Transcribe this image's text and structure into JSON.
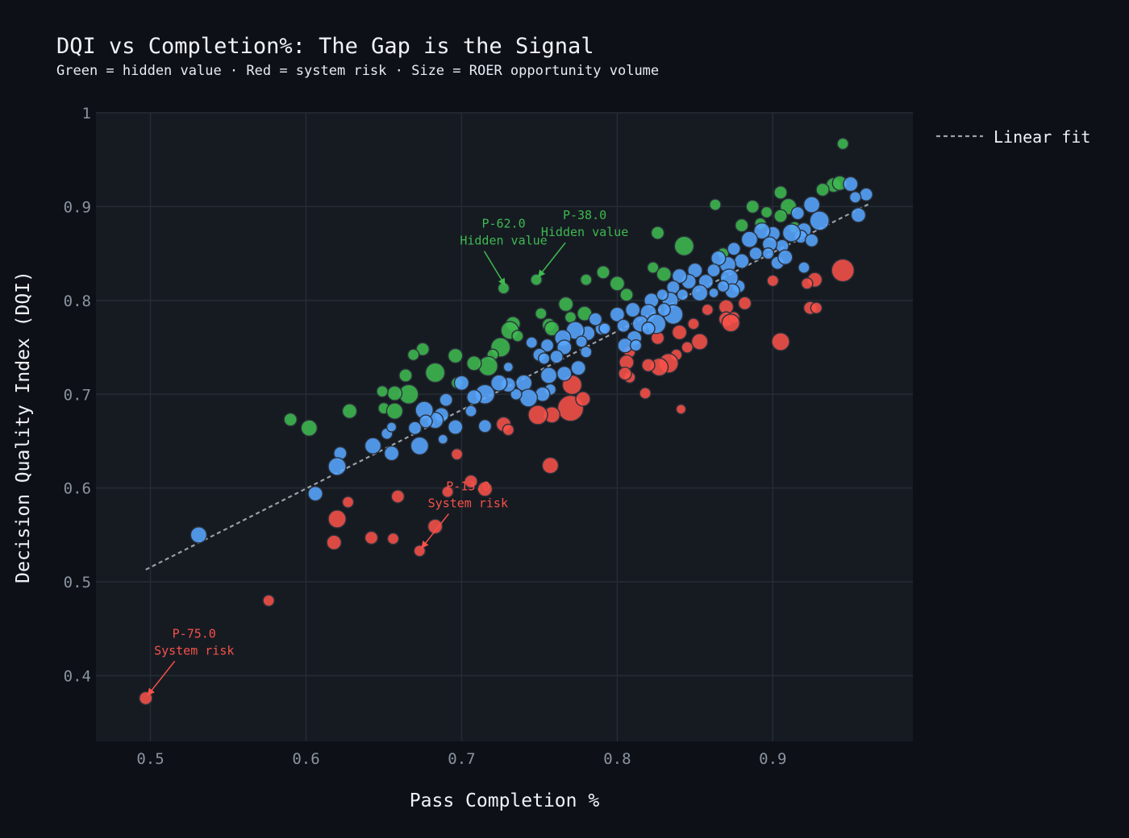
{
  "chart_data": {
    "type": "scatter",
    "title": "DQI vs Completion%: The Gap is the Signal",
    "subtitle": "Green = hidden value · Red = system risk · Size = ROER opportunity volume",
    "xlabel": "Pass Completion %",
    "ylabel": "Decision Quality Index (DQI)",
    "xlim": [
      0.465,
      0.99
    ],
    "ylim": [
      0.33,
      1.0
    ],
    "xticks": [
      "0.5",
      "0.6",
      "0.7",
      "0.8",
      "0.9"
    ],
    "yticks": [
      "0.4",
      "0.5",
      "0.6",
      "0.7",
      "0.8",
      "0.9",
      "1"
    ],
    "grid": true,
    "legend_position": "top-right outside",
    "colors": {
      "background": "#0d1017",
      "plot_bg": "#161b22",
      "grid": "#262c35",
      "green": "#3fb950",
      "red": "#f85149",
      "blue": "#58a6ff",
      "fit": "#9aa0a6"
    },
    "fit_line": {
      "name": "Linear fit",
      "x": [
        0.497,
        0.962
      ],
      "y": [
        0.513,
        0.903
      ]
    },
    "series": [
      {
        "color_key": "green",
        "points": [
          [
            0.945,
            0.967,
            7
          ],
          [
            0.905,
            0.915,
            8
          ],
          [
            0.939,
            0.923,
            9
          ],
          [
            0.943,
            0.925,
            9
          ],
          [
            0.932,
            0.918,
            8
          ],
          [
            0.863,
            0.902,
            7
          ],
          [
            0.887,
            0.9,
            8
          ],
          [
            0.91,
            0.9,
            10
          ],
          [
            0.896,
            0.894,
            7
          ],
          [
            0.905,
            0.89,
            8
          ],
          [
            0.892,
            0.882,
            7
          ],
          [
            0.88,
            0.88,
            8
          ],
          [
            0.914,
            0.878,
            7
          ],
          [
            0.826,
            0.872,
            8
          ],
          [
            0.843,
            0.858,
            12
          ],
          [
            0.868,
            0.85,
            7
          ],
          [
            0.823,
            0.835,
            7
          ],
          [
            0.83,
            0.828,
            9
          ],
          [
            0.8,
            0.818,
            9
          ],
          [
            0.78,
            0.822,
            7
          ],
          [
            0.791,
            0.83,
            8
          ],
          [
            0.806,
            0.806,
            8
          ],
          [
            0.767,
            0.796,
            9
          ],
          [
            0.779,
            0.786,
            9
          ],
          [
            0.727,
            0.813,
            7
          ],
          [
            0.748,
            0.822,
            7
          ],
          [
            0.77,
            0.782,
            7
          ],
          [
            0.756,
            0.774,
            8
          ],
          [
            0.758,
            0.77,
            9
          ],
          [
            0.751,
            0.786,
            7
          ],
          [
            0.733,
            0.775,
            9
          ],
          [
            0.731,
            0.768,
            11
          ],
          [
            0.736,
            0.762,
            7
          ],
          [
            0.725,
            0.75,
            12
          ],
          [
            0.72,
            0.742,
            7
          ],
          [
            0.717,
            0.73,
            12
          ],
          [
            0.708,
            0.733,
            9
          ],
          [
            0.696,
            0.741,
            9
          ],
          [
            0.683,
            0.723,
            12
          ],
          [
            0.675,
            0.748,
            8
          ],
          [
            0.669,
            0.742,
            7
          ],
          [
            0.664,
            0.72,
            8
          ],
          [
            0.697,
            0.712,
            7
          ],
          [
            0.666,
            0.7,
            12
          ],
          [
            0.657,
            0.701,
            9
          ],
          [
            0.649,
            0.703,
            7
          ],
          [
            0.65,
            0.685,
            7
          ],
          [
            0.657,
            0.682,
            10
          ],
          [
            0.628,
            0.682,
            9
          ],
          [
            0.59,
            0.673,
            8
          ],
          [
            0.602,
            0.664,
            10
          ]
        ]
      },
      {
        "color_key": "red",
        "points": [
          [
            0.945,
            0.832,
            14
          ],
          [
            0.927,
            0.822,
            9
          ],
          [
            0.922,
            0.818,
            7
          ],
          [
            0.9,
            0.821,
            7
          ],
          [
            0.924,
            0.792,
            8
          ],
          [
            0.928,
            0.792,
            7
          ],
          [
            0.882,
            0.797,
            8
          ],
          [
            0.87,
            0.793,
            9
          ],
          [
            0.87,
            0.78,
            9
          ],
          [
            0.875,
            0.782,
            7
          ],
          [
            0.873,
            0.776,
            11
          ],
          [
            0.858,
            0.79,
            7
          ],
          [
            0.905,
            0.756,
            11
          ],
          [
            0.853,
            0.756,
            10
          ],
          [
            0.849,
            0.775,
            7
          ],
          [
            0.84,
            0.766,
            9
          ],
          [
            0.845,
            0.75,
            7
          ],
          [
            0.838,
            0.742,
            7
          ],
          [
            0.833,
            0.733,
            12
          ],
          [
            0.827,
            0.729,
            11
          ],
          [
            0.82,
            0.731,
            8
          ],
          [
            0.826,
            0.76,
            8
          ],
          [
            0.808,
            0.745,
            7
          ],
          [
            0.806,
            0.734,
            9
          ],
          [
            0.808,
            0.718,
            7
          ],
          [
            0.805,
            0.722,
            8
          ],
          [
            0.818,
            0.701,
            7
          ],
          [
            0.841,
            0.684,
            6
          ],
          [
            0.771,
            0.71,
            12
          ],
          [
            0.77,
            0.685,
            16
          ],
          [
            0.758,
            0.678,
            10
          ],
          [
            0.778,
            0.695,
            9
          ],
          [
            0.749,
            0.678,
            12
          ],
          [
            0.727,
            0.668,
            9
          ],
          [
            0.73,
            0.662,
            7
          ],
          [
            0.757,
            0.624,
            10
          ],
          [
            0.697,
            0.636,
            7
          ],
          [
            0.706,
            0.607,
            8
          ],
          [
            0.715,
            0.599,
            9
          ],
          [
            0.691,
            0.596,
            7
          ],
          [
            0.683,
            0.559,
            9
          ],
          [
            0.673,
            0.533,
            7
          ],
          [
            0.659,
            0.591,
            8
          ],
          [
            0.656,
            0.546,
            7
          ],
          [
            0.642,
            0.547,
            8
          ],
          [
            0.62,
            0.567,
            11
          ],
          [
            0.627,
            0.585,
            7
          ],
          [
            0.618,
            0.542,
            9
          ],
          [
            0.576,
            0.48,
            7
          ],
          [
            0.497,
            0.376,
            8
          ]
        ]
      },
      {
        "color_key": "blue",
        "points": [
          [
            0.95,
            0.924,
            9
          ],
          [
            0.96,
            0.913,
            8
          ],
          [
            0.953,
            0.91,
            7
          ],
          [
            0.955,
            0.891,
            9
          ],
          [
            0.925,
            0.902,
            10
          ],
          [
            0.93,
            0.885,
            12
          ],
          [
            0.916,
            0.893,
            8
          ],
          [
            0.92,
            0.875,
            9
          ],
          [
            0.918,
            0.868,
            8
          ],
          [
            0.912,
            0.872,
            11
          ],
          [
            0.925,
            0.864,
            8
          ],
          [
            0.9,
            0.871,
            9
          ],
          [
            0.893,
            0.874,
            10
          ],
          [
            0.906,
            0.858,
            8
          ],
          [
            0.898,
            0.86,
            9
          ],
          [
            0.897,
            0.85,
            7
          ],
          [
            0.889,
            0.85,
            8
          ],
          [
            0.903,
            0.84,
            8
          ],
          [
            0.908,
            0.846,
            9
          ],
          [
            0.92,
            0.835,
            7
          ],
          [
            0.885,
            0.865,
            10
          ],
          [
            0.875,
            0.855,
            8
          ],
          [
            0.88,
            0.842,
            9
          ],
          [
            0.871,
            0.838,
            10
          ],
          [
            0.865,
            0.845,
            9
          ],
          [
            0.862,
            0.832,
            8
          ],
          [
            0.857,
            0.82,
            9
          ],
          [
            0.878,
            0.815,
            8
          ],
          [
            0.872,
            0.824,
            11
          ],
          [
            0.874,
            0.81,
            9
          ],
          [
            0.868,
            0.815,
            7
          ],
          [
            0.85,
            0.832,
            9
          ],
          [
            0.846,
            0.82,
            9
          ],
          [
            0.853,
            0.808,
            10
          ],
          [
            0.84,
            0.826,
            9
          ],
          [
            0.836,
            0.814,
            8
          ],
          [
            0.842,
            0.806,
            7
          ],
          [
            0.834,
            0.8,
            10
          ],
          [
            0.836,
            0.785,
            12
          ],
          [
            0.83,
            0.79,
            8
          ],
          [
            0.822,
            0.8,
            9
          ],
          [
            0.82,
            0.787,
            10
          ],
          [
            0.81,
            0.79,
            9
          ],
          [
            0.815,
            0.775,
            10
          ],
          [
            0.825,
            0.775,
            12
          ],
          [
            0.8,
            0.785,
            9
          ],
          [
            0.804,
            0.773,
            8
          ],
          [
            0.82,
            0.77,
            8
          ],
          [
            0.811,
            0.76,
            9
          ],
          [
            0.805,
            0.752,
            9
          ],
          [
            0.79,
            0.77,
            8
          ],
          [
            0.786,
            0.78,
            8
          ],
          [
            0.781,
            0.765,
            9
          ],
          [
            0.773,
            0.768,
            11
          ],
          [
            0.765,
            0.76,
            10
          ],
          [
            0.777,
            0.756,
            7
          ],
          [
            0.78,
            0.745,
            7
          ],
          [
            0.766,
            0.75,
            9
          ],
          [
            0.761,
            0.74,
            8
          ],
          [
            0.755,
            0.752,
            8
          ],
          [
            0.75,
            0.742,
            8
          ],
          [
            0.745,
            0.755,
            7
          ],
          [
            0.775,
            0.728,
            9
          ],
          [
            0.766,
            0.722,
            9
          ],
          [
            0.756,
            0.72,
            10
          ],
          [
            0.74,
            0.712,
            10
          ],
          [
            0.757,
            0.705,
            7
          ],
          [
            0.752,
            0.7,
            9
          ],
          [
            0.743,
            0.696,
            11
          ],
          [
            0.735,
            0.7,
            7
          ],
          [
            0.73,
            0.71,
            9
          ],
          [
            0.724,
            0.712,
            10
          ],
          [
            0.715,
            0.7,
            12
          ],
          [
            0.708,
            0.697,
            9
          ],
          [
            0.7,
            0.712,
            9
          ],
          [
            0.706,
            0.682,
            7
          ],
          [
            0.715,
            0.666,
            8
          ],
          [
            0.69,
            0.694,
            8
          ],
          [
            0.687,
            0.678,
            9
          ],
          [
            0.696,
            0.665,
            9
          ],
          [
            0.683,
            0.672,
            10
          ],
          [
            0.676,
            0.683,
            11
          ],
          [
            0.677,
            0.671,
            8
          ],
          [
            0.688,
            0.652,
            6
          ],
          [
            0.67,
            0.664,
            8
          ],
          [
            0.673,
            0.645,
            11
          ],
          [
            0.655,
            0.637,
            9
          ],
          [
            0.643,
            0.645,
            10
          ],
          [
            0.652,
            0.658,
            7
          ],
          [
            0.655,
            0.665,
            6
          ],
          [
            0.622,
            0.637,
            8
          ],
          [
            0.62,
            0.623,
            11
          ],
          [
            0.606,
            0.594,
            9
          ],
          [
            0.531,
            0.55,
            10
          ],
          [
            0.753,
            0.738,
            7
          ],
          [
            0.792,
            0.77,
            7
          ],
          [
            0.812,
            0.752,
            7
          ],
          [
            0.829,
            0.806,
            7
          ],
          [
            0.862,
            0.808,
            6
          ],
          [
            0.73,
            0.729,
            6
          ]
        ]
      }
    ],
    "annotations": [
      {
        "label": "P-62.0",
        "note": "Hidden value",
        "color_key": "green",
        "x": 0.727,
        "y": 0.813,
        "ann_dx": 0,
        "ann_dy": -54
      },
      {
        "label": "P-38.0",
        "note": "Hidden value",
        "color_key": "green",
        "x": 0.748,
        "y": 0.822,
        "ann_dx": 60,
        "ann_dy": -54
      },
      {
        "label": "P-13.0",
        "note": "System risk",
        "color_key": "red",
        "x": 0.673,
        "y": 0.533,
        "ann_dx": 60,
        "ann_dy": -54
      },
      {
        "label": "P-75.0",
        "note": "System risk",
        "color_key": "red",
        "x": 0.497,
        "y": 0.376,
        "ann_dx": 60,
        "ann_dy": -54
      }
    ]
  }
}
